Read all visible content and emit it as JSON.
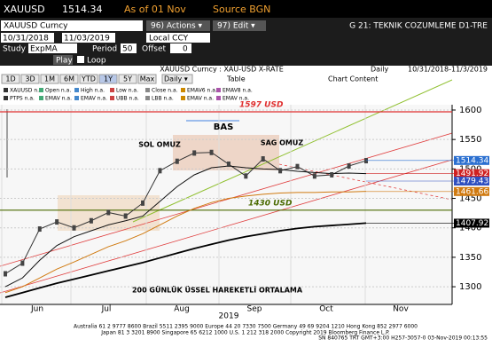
{
  "header": {
    "ticker": "XAUUSD",
    "price": "1514.34",
    "as_of": "As of 01 Nov",
    "source": "Source BGN"
  },
  "toolbar": {
    "security": "XAUUSD  Curncy",
    "actions": "96) Actions ▾",
    "edit": "97) Edit ▾",
    "page_title": "G 21: TEKNIK COZUMLEME D1-TRE"
  },
  "range": {
    "start": "10/31/2018",
    "end": "11/03/2019",
    "currency": "Local CCY"
  },
  "study": {
    "label": "Study",
    "name": "ExpMA",
    "period_label": "Period",
    "period": "50",
    "offset_label": "Offset",
    "offset": "0"
  },
  "playback": {
    "play": "Play",
    "loop": "Loop",
    "description": "XAUUSD Curncy : XAU-USD X-RATE",
    "frequency": "Daily",
    "span": "10/31/2018-11/3/2019"
  },
  "periods": [
    "1D",
    "3D",
    "1M",
    "6M",
    "YTD",
    "1Y",
    "5Y",
    "Max"
  ],
  "frequency_select": "Daily ▾",
  "table": "Table",
  "chart_content": "Chart Content",
  "legend": [
    "XAUUSD n.a.",
    "Open n.a.",
    "High n.a.",
    "Low n.a.",
    "Close n.a.",
    "EMAV6 n.a.",
    "EMAV8 n.a.",
    "PTPS n.a.",
    "EMAV n.a.",
    "EMAV n.a.",
    "UBB n.a.",
    "LBB n.a.",
    "EMAV n.a.",
    "EMAV n.a."
  ],
  "chart_data": {
    "type": "line",
    "ylim": [
      1270,
      1609
    ],
    "yticks": [
      1300,
      1350,
      1400,
      1450,
      1500,
      1550,
      1600
    ],
    "month_labels": [
      "Jun",
      "Jul",
      "Aug",
      "Sep",
      "Oct",
      "Nov"
    ],
    "year_label": "2019",
    "categories": [
      null,
      null,
      null,
      null,
      null,
      null,
      null,
      null,
      null,
      null,
      null,
      null,
      null,
      null,
      null,
      null,
      null,
      null,
      null,
      null,
      null,
      null
    ],
    "series": [
      {
        "color": "#333333",
        "values": [
          1322,
          1340,
          1398,
          1410,
          1400,
          1412,
          1426,
          1420,
          1442,
          1497,
          1513,
          1527,
          1528,
          1508,
          1488,
          1517,
          1497,
          1504,
          1488,
          1490,
          1505,
          1514
        ]
      },
      {
        "color": "#111111",
        "values": [
          1300,
          1315,
          1345,
          1370,
          1385,
          1395,
          1405,
          1412,
          1420,
          1445,
          1470,
          1490,
          1502,
          1505,
          1502,
          1500,
          1499,
          1496,
          1494,
          1492,
          1493,
          1492
        ]
      },
      {
        "color": "#d07a10",
        "values": [
          1290,
          1300,
          1315,
          1330,
          1342,
          1355,
          1368,
          1378,
          1390,
          1405,
          1420,
          1433,
          1443,
          1450,
          1454,
          1457,
          1459,
          1460,
          1460,
          1461,
          1461,
          1462
        ]
      },
      {
        "color": "#000000",
        "values": [
          1282,
          1290,
          1298,
          1306,
          1313,
          1320,
          1327,
          1334,
          1341,
          1349,
          1357,
          1365,
          1372,
          1379,
          1385,
          1390,
          1395,
          1399,
          1402,
          1404,
          1406,
          1408
        ]
      }
    ],
    "levels": [
      {
        "value": 1597,
        "label": "1597 USD",
        "color": "#e03030"
      },
      {
        "value": 1430,
        "label": "1430 USD",
        "color": "#4a6a00"
      }
    ],
    "annotations": [
      "SOL OMUZ",
      "BAS",
      "SAG OMUZ",
      "200 GÜNLÜK ÜSSEL HAREKETLİ ORTALAMA"
    ],
    "price_tags": [
      {
        "value": 1514.34,
        "label": "1514.34",
        "color": "#2a6fd0"
      },
      {
        "value": 1491.92,
        "label": "1491.92",
        "color": "#d02020"
      },
      {
        "value": 1479.43,
        "label": "1479.43",
        "color": "#3050c0"
      },
      {
        "value": 1461.66,
        "label": "1461.66",
        "color": "#d07a10"
      },
      {
        "value": 1407.92,
        "label": "1407.92",
        "color": "#000000"
      }
    ]
  },
  "footer": [
    "Australia 61 2 9777 8600 Brazil 5511 2395 9000 Europe 44 20 7330 7500 Germany 49 69 9204 1210 Hong Kong 852 2977 6000",
    "Japan 81 3 3201 8900    Singapore 65 6212 1000    U.S. 1 212 318 2000    Copyright 2019 Bloomberg Finance L.P.",
    "SN 840765 TRT GMT+3:00 H257-3057-0 03-Nov-2019 00:13:55"
  ]
}
